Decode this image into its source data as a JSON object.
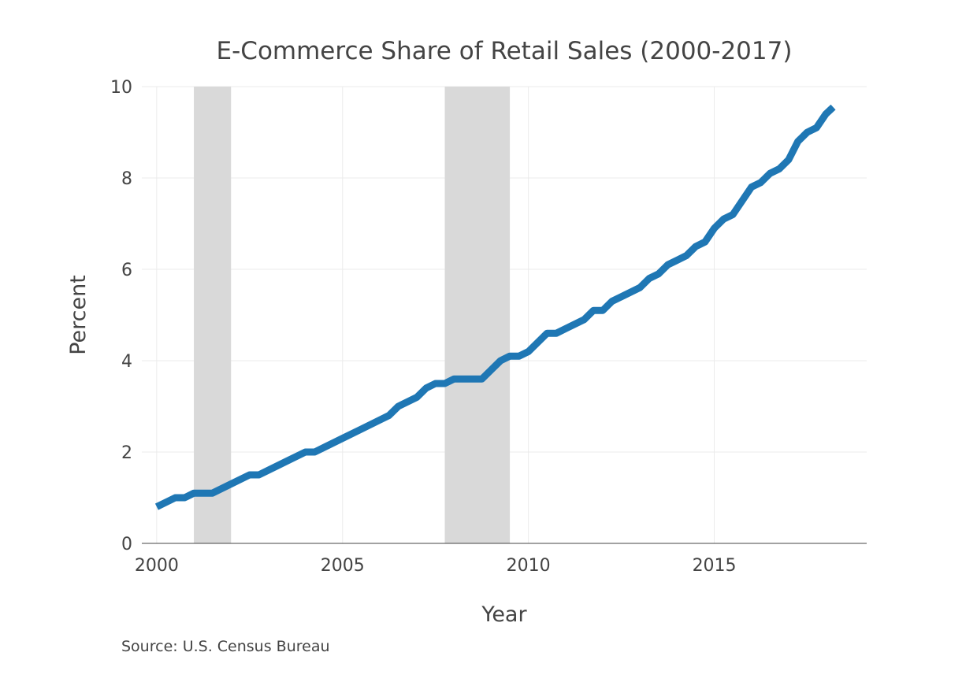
{
  "chart_data": {
    "type": "line",
    "title": "E-Commerce Share of Retail Sales (2000-2017)",
    "xlabel": "Year",
    "ylabel": "Percent",
    "xlim": [
      1999.6,
      2019.1
    ],
    "ylim": [
      0,
      10
    ],
    "x_ticks": [
      "2000",
      "2005",
      "2010",
      "2015"
    ],
    "y_ticks": [
      "0",
      "2",
      "4",
      "6",
      "8",
      "10"
    ],
    "grid": true,
    "line_color": "#1f77b4",
    "shading_color": "#d9d9d9",
    "recessions": [
      {
        "start": 2001.0,
        "end": 2002.0
      },
      {
        "start": 2007.75,
        "end": 2009.5
      }
    ],
    "series": [
      {
        "x": [
          2000.0,
          2000.5,
          2000.75,
          2001.0,
          2001.25,
          2001.5,
          2002.0,
          2002.5,
          2002.75,
          2003.0,
          2003.5,
          2004.0,
          2004.25,
          2004.5,
          2005.0,
          2005.5,
          2006.0,
          2006.25,
          2006.5,
          2007.0,
          2007.25,
          2007.5,
          2007.75,
          2008.0,
          2008.5,
          2008.75,
          2009.0,
          2009.25,
          2009.5,
          2009.75,
          2010.0,
          2010.5,
          2010.75,
          2011.0,
          2011.5,
          2011.75,
          2012.0,
          2012.25,
          2012.5,
          2013.0,
          2013.25,
          2013.5,
          2013.75,
          2014.0,
          2014.25,
          2014.5,
          2014.75,
          2015.0,
          2015.25,
          2015.5,
          2016.0,
          2016.25,
          2016.5,
          2016.75,
          2017.0,
          2017.25,
          2017.5,
          2017.75,
          2018.0,
          2018.2
        ],
        "y": [
          0.8,
          1.0,
          1.0,
          1.1,
          1.1,
          1.1,
          1.3,
          1.5,
          1.5,
          1.6,
          1.8,
          2.0,
          2.0,
          2.1,
          2.3,
          2.5,
          2.7,
          2.8,
          3.0,
          3.2,
          3.4,
          3.5,
          3.5,
          3.6,
          3.6,
          3.6,
          3.8,
          4.0,
          4.1,
          4.1,
          4.2,
          4.6,
          4.6,
          4.7,
          4.9,
          5.1,
          5.1,
          5.3,
          5.4,
          5.6,
          5.8,
          5.9,
          6.1,
          6.2,
          6.3,
          6.5,
          6.6,
          6.9,
          7.1,
          7.2,
          7.8,
          7.9,
          8.1,
          8.2,
          8.4,
          8.8,
          9.0,
          9.1,
          9.4,
          9.55
        ]
      }
    ],
    "source": "Source: U.S. Census Bureau"
  }
}
